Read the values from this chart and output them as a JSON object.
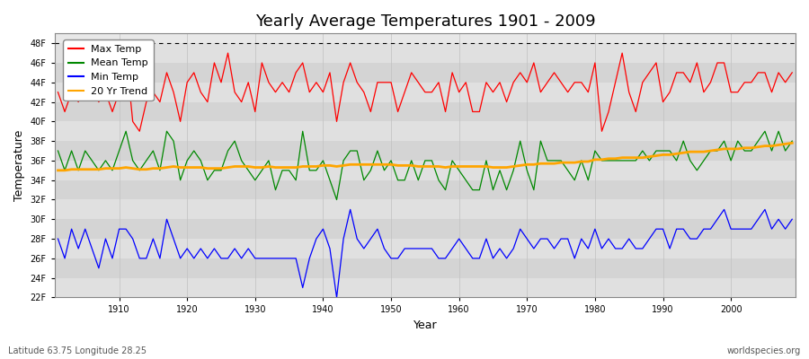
{
  "title": "Yearly Average Temperatures 1901 - 2009",
  "xlabel": "Year",
  "ylabel": "Temperature",
  "start_year": 1901,
  "end_year": 2009,
  "ylim": [
    22,
    49
  ],
  "yticks": [
    22,
    24,
    26,
    28,
    30,
    32,
    34,
    36,
    38,
    40,
    42,
    44,
    46,
    48
  ],
  "ytick_labels": [
    "22F",
    "24F",
    "26F",
    "28F",
    "30F",
    "32F",
    "34F",
    "36F",
    "38F",
    "40F",
    "42F",
    "44F",
    "46F",
    "48F"
  ],
  "hline_y": 48,
  "colors": {
    "max": "#ff0000",
    "mean": "#008800",
    "min": "#0000ff",
    "trend": "#ffa500"
  },
  "legend_labels": [
    "Max Temp",
    "Mean Temp",
    "Min Temp",
    "20 Yr Trend"
  ],
  "bg_color": "#f0f0f0",
  "band_color_light": "#e8e8e8",
  "band_color_dark": "#d8d8d8",
  "subtitle_left": "Latitude 63.75 Longitude 28.25",
  "subtitle_right": "worldspecies.org",
  "max_temps": [
    43,
    41,
    43,
    42,
    44,
    43,
    42,
    43,
    41,
    43,
    47,
    40,
    39,
    42,
    43,
    42,
    45,
    43,
    40,
    44,
    45,
    43,
    42,
    46,
    44,
    47,
    43,
    42,
    44,
    41,
    46,
    44,
    43,
    44,
    43,
    45,
    46,
    43,
    44,
    43,
    45,
    40,
    44,
    46,
    44,
    43,
    41,
    44,
    44,
    44,
    41,
    43,
    45,
    44,
    43,
    43,
    44,
    41,
    45,
    43,
    44,
    41,
    41,
    44,
    43,
    44,
    42,
    44,
    45,
    44,
    46,
    43,
    44,
    45,
    44,
    43,
    44,
    44,
    43,
    46,
    39,
    41,
    44,
    47,
    43,
    41,
    44,
    45,
    46,
    42,
    43,
    45,
    45,
    44,
    46,
    43,
    44,
    46,
    46,
    43,
    43,
    44,
    44,
    45,
    45,
    43,
    45,
    44,
    45
  ],
  "mean_temps": [
    37,
    35,
    37,
    35,
    37,
    36,
    35,
    36,
    35,
    37,
    39,
    36,
    35,
    36,
    37,
    35,
    39,
    38,
    34,
    36,
    37,
    36,
    34,
    35,
    35,
    37,
    38,
    36,
    35,
    34,
    35,
    36,
    33,
    35,
    35,
    34,
    39,
    35,
    35,
    36,
    34,
    32,
    36,
    37,
    37,
    34,
    35,
    37,
    35,
    36,
    34,
    34,
    36,
    34,
    36,
    36,
    34,
    33,
    36,
    35,
    34,
    33,
    33,
    36,
    33,
    35,
    33,
    35,
    38,
    35,
    33,
    38,
    36,
    36,
    36,
    35,
    34,
    36,
    34,
    37,
    36,
    36,
    36,
    36,
    36,
    36,
    37,
    36,
    37,
    37,
    37,
    36,
    38,
    36,
    35,
    36,
    37,
    37,
    38,
    36,
    38,
    37,
    37,
    38,
    39,
    37,
    39,
    37,
    38
  ],
  "min_temps": [
    28,
    26,
    29,
    27,
    29,
    27,
    25,
    28,
    26,
    29,
    29,
    28,
    26,
    26,
    28,
    26,
    30,
    28,
    26,
    27,
    26,
    27,
    26,
    27,
    26,
    26,
    27,
    26,
    27,
    26,
    26,
    26,
    26,
    26,
    26,
    26,
    23,
    26,
    28,
    29,
    27,
    22,
    28,
    31,
    28,
    27,
    28,
    29,
    27,
    26,
    26,
    27,
    27,
    27,
    27,
    27,
    26,
    26,
    27,
    28,
    27,
    26,
    26,
    28,
    26,
    27,
    26,
    27,
    29,
    28,
    27,
    28,
    28,
    27,
    28,
    28,
    26,
    28,
    27,
    29,
    27,
    28,
    27,
    27,
    28,
    27,
    27,
    28,
    29,
    29,
    27,
    29,
    29,
    28,
    28,
    29,
    29,
    30,
    31,
    29,
    29,
    29,
    29,
    30,
    31,
    29,
    30,
    29,
    30
  ],
  "trend_temps": [
    35.0,
    35.0,
    35.1,
    35.1,
    35.1,
    35.1,
    35.1,
    35.2,
    35.2,
    35.2,
    35.3,
    35.2,
    35.1,
    35.1,
    35.2,
    35.2,
    35.3,
    35.4,
    35.3,
    35.3,
    35.3,
    35.3,
    35.2,
    35.2,
    35.2,
    35.3,
    35.4,
    35.4,
    35.4,
    35.3,
    35.3,
    35.4,
    35.3,
    35.3,
    35.3,
    35.3,
    35.4,
    35.4,
    35.4,
    35.5,
    35.5,
    35.4,
    35.5,
    35.6,
    35.6,
    35.6,
    35.6,
    35.6,
    35.6,
    35.6,
    35.5,
    35.5,
    35.5,
    35.4,
    35.4,
    35.4,
    35.4,
    35.3,
    35.4,
    35.4,
    35.4,
    35.4,
    35.4,
    35.4,
    35.3,
    35.3,
    35.3,
    35.4,
    35.5,
    35.6,
    35.6,
    35.7,
    35.7,
    35.7,
    35.8,
    35.8,
    35.8,
    35.9,
    35.9,
    36.1,
    36.1,
    36.2,
    36.2,
    36.3,
    36.3,
    36.3,
    36.3,
    36.4,
    36.5,
    36.6,
    36.6,
    36.7,
    36.8,
    36.9,
    36.9,
    36.9,
    37.0,
    37.1,
    37.2,
    37.2,
    37.2,
    37.3,
    37.3,
    37.4,
    37.5,
    37.5,
    37.6,
    37.7,
    37.8
  ]
}
